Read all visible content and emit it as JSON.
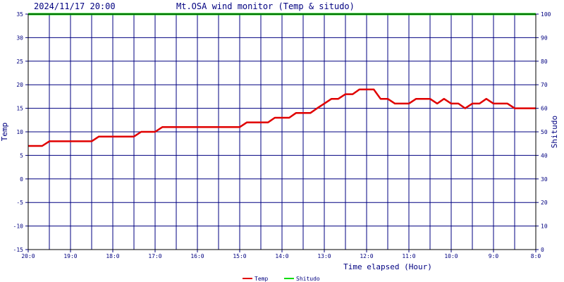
{
  "header": {
    "datetime": "2024/11/17 20:00",
    "title": "Mt.OSA wind monitor (Temp & situdo)"
  },
  "colors": {
    "frame": "#000000",
    "grid": "#000080",
    "axis_text": "#000080",
    "temp": "#e00000",
    "situdo": "#00dd00"
  },
  "chart_data": {
    "type": "line",
    "title": "Mt.OSA wind monitor (Temp & situdo)",
    "xlabel": "Time elapsed (Hour)",
    "ylabel": "Temp",
    "y2label": "Shitudo",
    "x_categories": [
      "20:0",
      "19:0",
      "18:0",
      "17:0",
      "16:0",
      "15:0",
      "14:0",
      "13:0",
      "12:0",
      "11:0",
      "10:0",
      "9:0",
      "8:0"
    ],
    "xlim": [
      0,
      12
    ],
    "ylim": [
      -15,
      35
    ],
    "y2lim": [
      0,
      100
    ],
    "yticks": [
      35,
      30,
      25,
      20,
      15,
      10,
      5,
      0,
      -5,
      -10,
      -15
    ],
    "y2ticks": [
      100,
      90,
      80,
      70,
      60,
      50,
      40,
      30,
      20,
      10,
      0
    ],
    "grid": true,
    "legend_position": "bottom-center",
    "legend": [
      {
        "name": "Temp",
        "color": "#e00000"
      },
      {
        "name": "Shitudo",
        "color": "#00dd00"
      }
    ],
    "series": [
      {
        "name": "Temp",
        "axis": "left",
        "color": "#e00000",
        "x": [
          0,
          0.33,
          0.5,
          1.5,
          1.67,
          2.5,
          2.67,
          3.0,
          3.17,
          5.0,
          5.17,
          5.67,
          5.83,
          6.17,
          6.33,
          6.67,
          6.83,
          7.0,
          7.17,
          7.33,
          7.5,
          7.67,
          7.83,
          8.17,
          8.33,
          8.5,
          8.67,
          9.0,
          9.17,
          9.5,
          9.67,
          9.83,
          10.0,
          10.17,
          10.33,
          10.5,
          10.67,
          10.83,
          11.0,
          11.17,
          11.33,
          11.5,
          12.0
        ],
        "y": [
          7,
          7,
          8,
          8,
          9,
          9,
          10,
          10,
          11,
          11,
          12,
          12,
          13,
          13,
          14,
          14,
          15,
          16,
          17,
          17,
          18,
          18,
          19,
          19,
          17,
          17,
          16,
          16,
          17,
          17,
          16,
          17,
          16,
          16,
          15,
          16,
          16,
          17,
          16,
          16,
          16,
          15,
          15
        ]
      },
      {
        "name": "Shitudo",
        "axis": "right",
        "color": "#00dd00",
        "x": [
          0,
          12
        ],
        "y": [
          100,
          100
        ]
      }
    ]
  }
}
